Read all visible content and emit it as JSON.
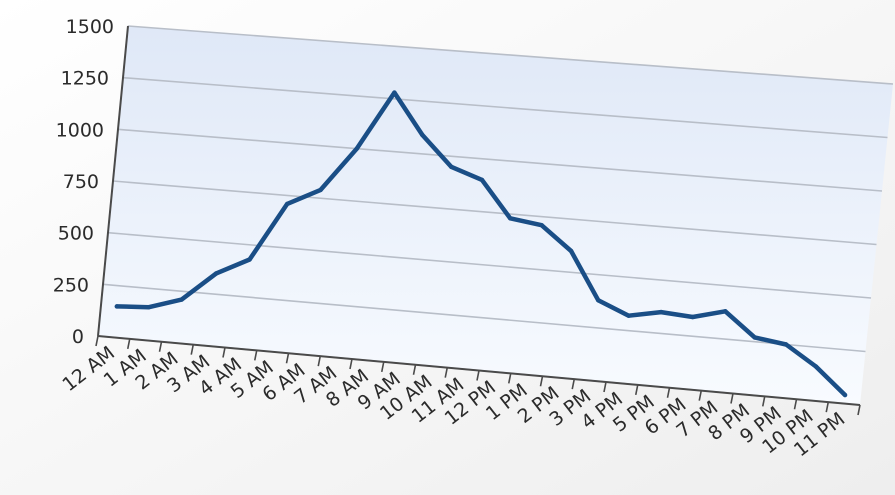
{
  "chart_data": {
    "type": "line",
    "title": "",
    "xlabel": "",
    "ylabel": "",
    "categories": [
      "12 AM",
      "1 AM",
      "2 AM",
      "3 AM",
      "4 AM",
      "5 AM",
      "6 AM",
      "7 AM",
      "8 AM",
      "9 AM",
      "10 AM",
      "11 AM",
      "12 PM",
      "1 PM",
      "2 PM",
      "3 PM",
      "4 PM",
      "5 PM",
      "6 PM",
      "7 PM",
      "8 PM",
      "9 PM",
      "10 PM",
      "11 PM"
    ],
    "series": [
      {
        "values": [
          150,
          160,
          210,
          350,
          430,
          710,
          790,
          1000,
          1280,
          1090,
          950,
          900,
          730,
          710,
          600,
          380,
          320,
          350,
          340,
          380,
          270,
          250,
          160,
          40
        ],
        "color": "#1a4e86"
      }
    ],
    "y_ticks": [
      "0",
      "250",
      "500",
      "750",
      "1000",
      "1250",
      "1500"
    ],
    "ylim": [
      0,
      1500
    ],
    "grid": true,
    "legend": "none",
    "plot_area_color": "#eef3fb",
    "gridline_color": "#b8bec8"
  }
}
